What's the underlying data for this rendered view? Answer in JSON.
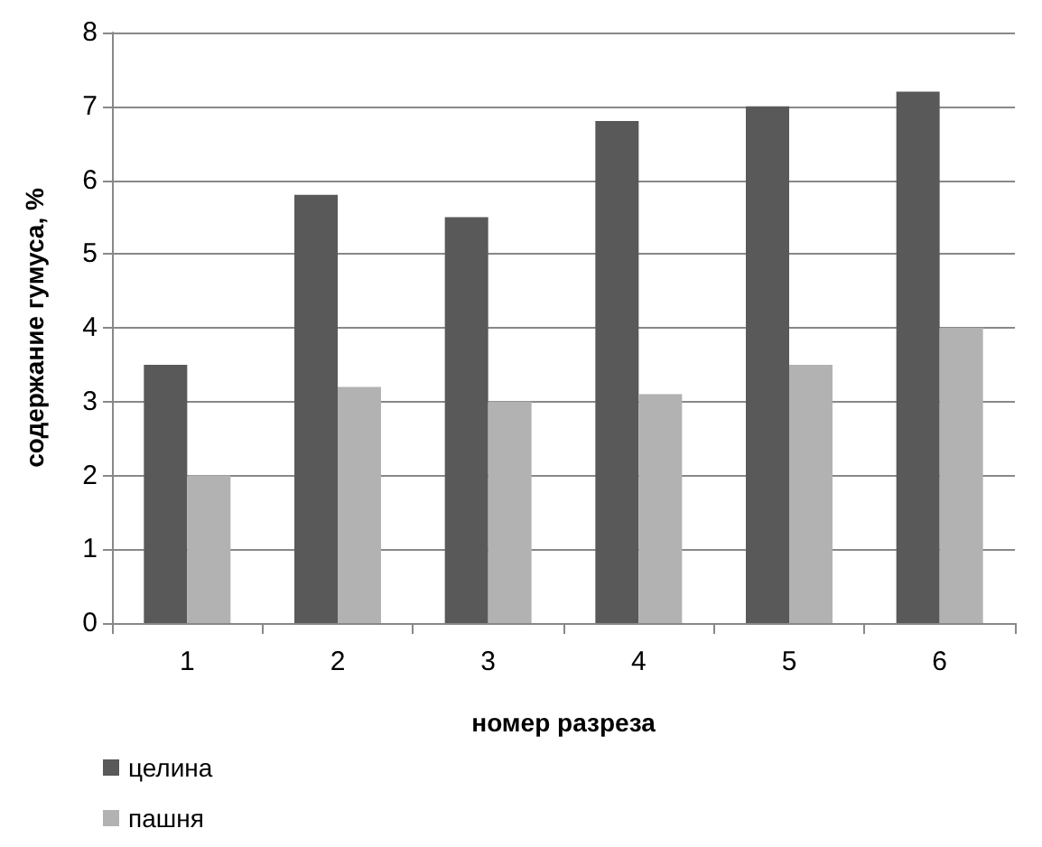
{
  "chart_data": {
    "type": "bar",
    "xlabel": "номер разреза",
    "ylabel": "содержание гумуса, %",
    "categories": [
      "1",
      "2",
      "3",
      "4",
      "5",
      "6"
    ],
    "series": [
      {
        "name": "целина",
        "color": "#595959",
        "values": [
          3.5,
          5.8,
          5.5,
          6.8,
          7.0,
          7.2
        ]
      },
      {
        "name": "пашня",
        "color": "#b2b2b2",
        "values": [
          2.0,
          3.2,
          3.0,
          3.1,
          3.5,
          4.0
        ]
      }
    ],
    "ylim": [
      0,
      8
    ],
    "yticks": [
      0,
      1,
      2,
      3,
      4,
      5,
      6,
      7,
      8
    ],
    "grid": "y",
    "legend": "bottom"
  }
}
